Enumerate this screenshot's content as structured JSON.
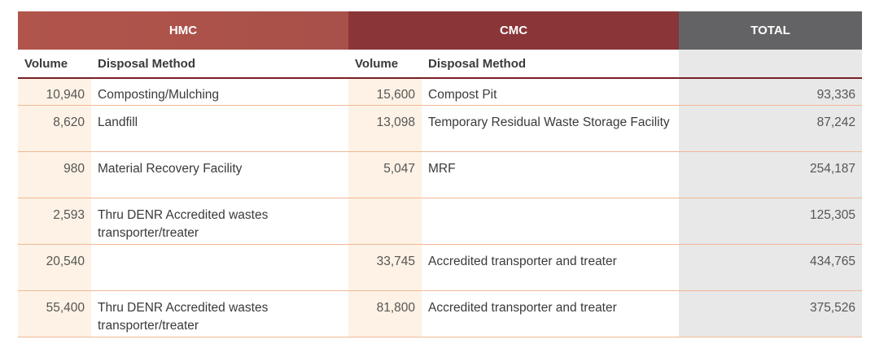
{
  "header": {
    "hmc": "HMC",
    "cmc": "CMC",
    "total": "TOTAL",
    "volume": "Volume",
    "disposal_method": "Disposal Method"
  },
  "rows": [
    {
      "hmc_volume": "10,940",
      "hmc_method": "Composting/Mulching",
      "cmc_volume": "15,600",
      "cmc_method": "Compost Pit",
      "total": "93,336"
    },
    {
      "hmc_volume": "8,620",
      "hmc_method": "Landfill",
      "cmc_volume": "13,098",
      "cmc_method": "Temporary Residual Waste Storage Facility",
      "total": "87,242"
    },
    {
      "hmc_volume": "980",
      "hmc_method": "Material Recovery Facility",
      "cmc_volume": "5,047",
      "cmc_method": "MRF",
      "total": "254,187"
    },
    {
      "hmc_volume": "2,593",
      "hmc_method": "Thru DENR Accredited wastes transporter/treater",
      "cmc_volume": "",
      "cmc_method": "",
      "total": "125,305"
    },
    {
      "hmc_volume": "20,540",
      "hmc_method": "",
      "cmc_volume": "33,745",
      "cmc_method": "Accredited transporter and treater",
      "total": "434,765"
    },
    {
      "hmc_volume": "55,400",
      "hmc_method": "Thru DENR Accredited wastes transporter/treater",
      "cmc_volume": "81,800",
      "cmc_method": "Accredited transporter and treater",
      "total": "375,526"
    }
  ],
  "colors": {
    "hmc_header": "#ad534a",
    "cmc_header": "#8a3538",
    "total_header": "#636365",
    "volume_shade": "#fdf2e5",
    "total_shade": "#e8e8e8",
    "row_rule": "#f0b895"
  }
}
